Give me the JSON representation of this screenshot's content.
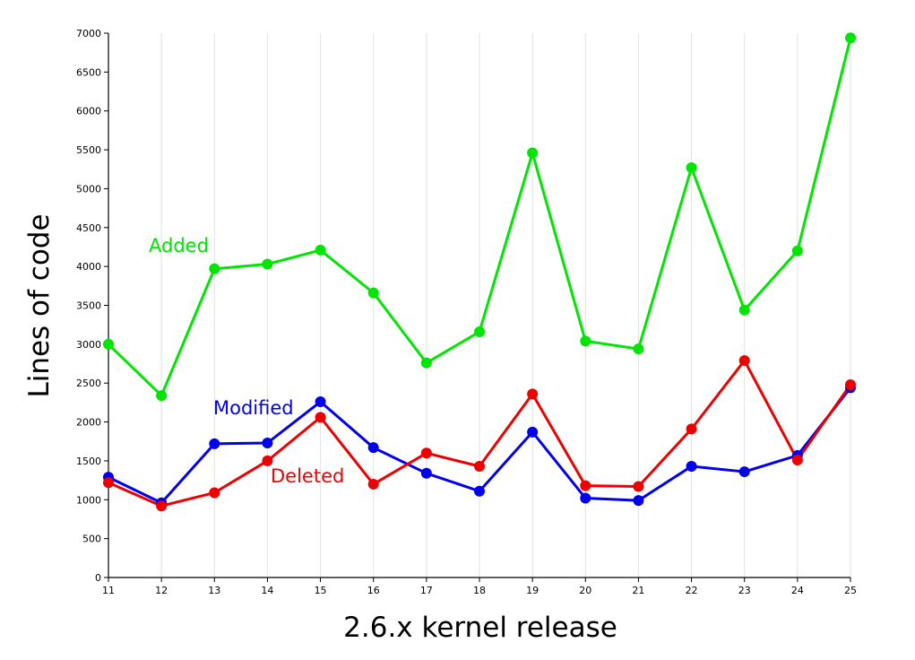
{
  "chart_data": {
    "type": "line",
    "xlabel": "2.6.x kernel release",
    "ylabel": "Lines of code",
    "x": [
      11,
      12,
      13,
      14,
      15,
      16,
      17,
      18,
      19,
      20,
      21,
      22,
      23,
      24,
      25
    ],
    "x_tick_labels": [
      "11",
      "12",
      "13",
      "14",
      "15",
      "16",
      "17",
      "18",
      "19",
      "20",
      "21",
      "22",
      "23",
      "24",
      "25"
    ],
    "ylim": [
      0,
      7000
    ],
    "y_ticks": [
      0,
      500,
      1000,
      1500,
      2000,
      2500,
      3000,
      3500,
      4000,
      4500,
      5000,
      5500,
      6000,
      6500,
      7000
    ],
    "y_tick_labels": [
      "0",
      "500",
      "1000",
      "1500",
      "2000",
      "2500",
      "3000",
      "3500",
      "4000",
      "4500",
      "5000",
      "5500",
      "6000",
      "6500",
      "7000"
    ],
    "grid": "vertical",
    "series": [
      {
        "name": "Added",
        "color": "#00e600",
        "values": [
          3000,
          2340,
          3970,
          4030,
          4210,
          3660,
          2760,
          3160,
          5460,
          3040,
          2940,
          5270,
          3440,
          4200,
          6940
        ]
      },
      {
        "name": "Modified",
        "color": "#0000ee",
        "values": [
          1290,
          960,
          1720,
          1730,
          2260,
          1670,
          1340,
          1110,
          1870,
          1020,
          990,
          1430,
          1360,
          1570,
          2440
        ]
      },
      {
        "name": "Deleted",
        "color": "#ee0000",
        "values": [
          1220,
          920,
          1090,
          1500,
          2060,
          1200,
          1600,
          1430,
          2360,
          1180,
          1170,
          1910,
          2790,
          1510,
          2480
        ]
      }
    ]
  }
}
